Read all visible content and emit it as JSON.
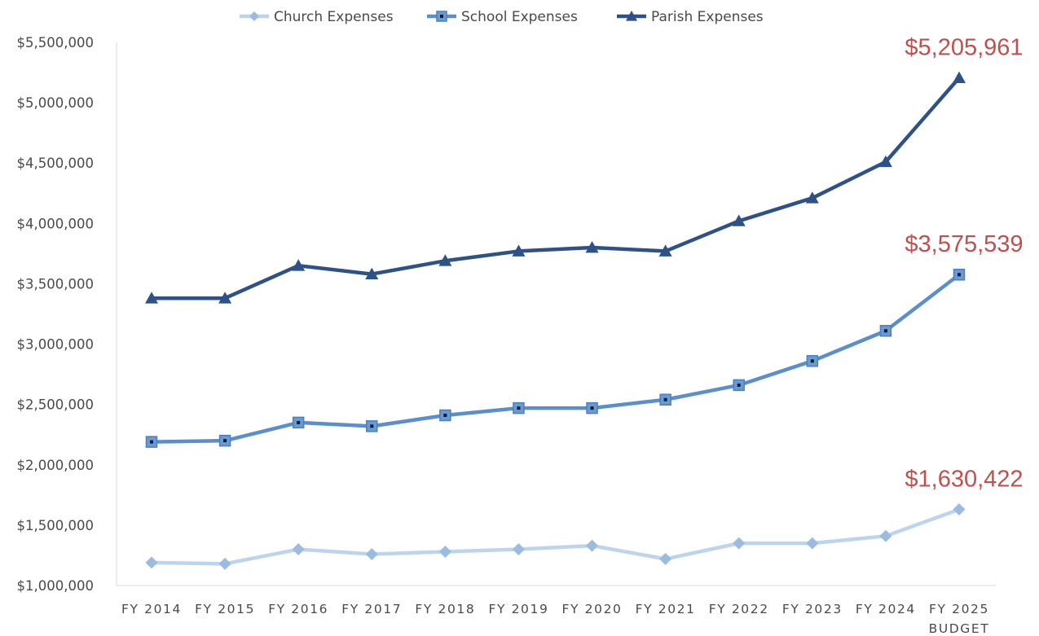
{
  "chart_data": {
    "type": "line",
    "title": "",
    "xlabel": "",
    "ylabel": "",
    "categories": [
      "FY 2014",
      "FY 2015",
      "FY 2016",
      "FY 2017",
      "FY 2018",
      "FY 2019",
      "FY 2020",
      "FY 2021",
      "FY 2022",
      "FY 2023",
      "FY 2024",
      "FY 2025"
    ],
    "category_sublabels": [
      "",
      "",
      "",
      "",
      "",
      "",
      "",
      "",
      "",
      "",
      "",
      "BUDGET"
    ],
    "ylim": [
      1000000,
      5500000
    ],
    "yticks": [
      1000000,
      1500000,
      2000000,
      2500000,
      3000000,
      3500000,
      4000000,
      4500000,
      5000000,
      5500000
    ],
    "ytick_labels": [
      "$1,000,000",
      "$1,500,000",
      "$2,000,000",
      "$2,500,000",
      "$3,000,000",
      "$3,500,000",
      "$4,000,000",
      "$4,500,000",
      "$5,000,000",
      "$5,500,000"
    ],
    "grid": false,
    "legend": {
      "position": "top"
    },
    "series": [
      {
        "name": "Church Expenses",
        "color": "#bdd4ee",
        "marker_color": "#99bce0",
        "marker": "diamond",
        "values": [
          1190000,
          1180000,
          1300000,
          1260000,
          1280000,
          1300000,
          1330000,
          1220000,
          1350000,
          1350000,
          1410000,
          1630422
        ]
      },
      {
        "name": "School Expenses",
        "color": "#5b8fcb",
        "marker_color": "#6a9ad2",
        "marker": "square",
        "values": [
          2190000,
          2200000,
          2350000,
          2320000,
          2410000,
          2470000,
          2470000,
          2540000,
          2660000,
          2860000,
          3110000,
          3575539
        ]
      },
      {
        "name": "Parish Expenses",
        "color": "#2e5287",
        "marker_color": "#2e5287",
        "marker": "triangle",
        "values": [
          3380000,
          3380000,
          3650000,
          3580000,
          3690000,
          3770000,
          3800000,
          3770000,
          4020000,
          4210000,
          4510000,
          5205961
        ]
      }
    ],
    "annotations": [
      {
        "text": "$5,205,961",
        "series": "Parish Expenses",
        "category": "FY 2025",
        "color": "#c0504d"
      },
      {
        "text": "$3,575,539",
        "series": "School Expenses",
        "category": "FY 2025",
        "color": "#c0504d"
      },
      {
        "text": "$1,630,422",
        "series": "Church Expenses",
        "category": "FY 2025",
        "color": "#c0504d"
      }
    ]
  }
}
